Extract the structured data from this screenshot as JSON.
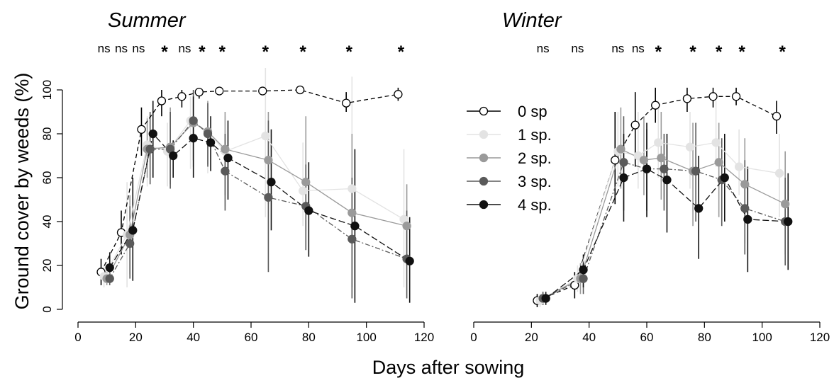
{
  "y_axis_title": "Ground cover by weeds (%)",
  "x_axis_title": "Days after sowing",
  "legend": [
    {
      "label": "0 sp",
      "color": "#000000",
      "fill": "#ffffff",
      "dash": "6,4"
    },
    {
      "label": "1 sp.",
      "color": "#e3e3e3",
      "fill": "#e3e3e3",
      "dash": ""
    },
    {
      "label": "2 sp.",
      "color": "#9a9a9a",
      "fill": "#9a9a9a",
      "dash": ""
    },
    {
      "label": "3 sp.",
      "color": "#5a5a5a",
      "fill": "#5a5a5a",
      "dash": "7,3,2,3"
    },
    {
      "label": "4 sp.",
      "color": "#111111",
      "fill": "#111111",
      "dash": "9,4"
    }
  ],
  "chart_data": [
    {
      "type": "line",
      "title": "Summer",
      "xlabel": "Days after sowing",
      "ylabel": "Ground cover by weeds (%)",
      "xlim": [
        0,
        120
      ],
      "ylim": [
        0,
        100
      ],
      "xticks": [
        "0",
        "20",
        "40",
        "60",
        "80",
        "100",
        "120"
      ],
      "yticks": [
        "0",
        "20",
        "40",
        "60",
        "80",
        "100"
      ],
      "significance": [
        {
          "x": 9,
          "label": "ns"
        },
        {
          "x": 15,
          "label": "ns"
        },
        {
          "x": 21,
          "label": "ns"
        },
        {
          "x": 30,
          "label": "*"
        },
        {
          "x": 37,
          "label": "ns"
        },
        {
          "x": 43,
          "label": "*"
        },
        {
          "x": 50,
          "label": "*"
        },
        {
          "x": 65,
          "label": "*"
        },
        {
          "x": 78,
          "label": "*"
        },
        {
          "x": 94,
          "label": "*"
        },
        {
          "x": 112,
          "label": "*"
        }
      ],
      "series": [
        {
          "name": "0 sp",
          "points": [
            {
              "x": 8,
              "y": 17,
              "lo": 11,
              "hi": 23
            },
            {
              "x": 15,
              "y": 35,
              "lo": 25,
              "hi": 45
            },
            {
              "x": 22,
              "y": 82,
              "lo": 70,
              "hi": 92
            },
            {
              "x": 29,
              "y": 95,
              "lo": 88,
              "hi": 100
            },
            {
              "x": 36,
              "y": 97,
              "lo": 92,
              "hi": 100
            },
            {
              "x": 42,
              "y": 99,
              "lo": 96,
              "hi": 100
            },
            {
              "x": 49,
              "y": 99.5,
              "lo": 98,
              "hi": 101
            },
            {
              "x": 64,
              "y": 99.5,
              "lo": 98,
              "hi": 101
            },
            {
              "x": 77,
              "y": 100,
              "lo": 99,
              "hi": 101
            },
            {
              "x": 93,
              "y": 94,
              "lo": 90,
              "hi": 99
            },
            {
              "x": 111,
              "y": 98,
              "lo": 95,
              "hi": 101
            }
          ]
        },
        {
          "name": "1 sp.",
          "points": [
            {
              "x": 9,
              "y": 15,
              "lo": 10,
              "hi": 20
            },
            {
              "x": 17,
              "y": 34,
              "lo": 10,
              "hi": 58
            },
            {
              "x": 24,
              "y": 75,
              "lo": 56,
              "hi": 88
            },
            {
              "x": 31,
              "y": 72,
              "lo": 56,
              "hi": 85
            },
            {
              "x": 39,
              "y": 86,
              "lo": 64,
              "hi": 97
            },
            {
              "x": 45,
              "y": 81,
              "lo": 62,
              "hi": 93
            },
            {
              "x": 51,
              "y": 72,
              "lo": 47,
              "hi": 88
            },
            {
              "x": 65,
              "y": 79,
              "lo": 42,
              "hi": 110
            },
            {
              "x": 78,
              "y": 54,
              "lo": 38,
              "hi": 76
            },
            {
              "x": 95,
              "y": 55,
              "lo": 25,
              "hi": 106
            },
            {
              "x": 113,
              "y": 41,
              "lo": 10,
              "hi": 73
            }
          ]
        },
        {
          "name": "2 sp.",
          "points": [
            {
              "x": 10,
              "y": 14,
              "lo": 11,
              "hi": 17
            },
            {
              "x": 18,
              "y": 34,
              "lo": 16,
              "hi": 52
            },
            {
              "x": 24,
              "y": 73,
              "lo": 60,
              "hi": 87
            },
            {
              "x": 32,
              "y": 74,
              "lo": 57,
              "hi": 92
            },
            {
              "x": 40,
              "y": 85,
              "lo": 65,
              "hi": 100
            },
            {
              "x": 45,
              "y": 81,
              "lo": 66,
              "hi": 95
            },
            {
              "x": 51,
              "y": 73,
              "lo": 52,
              "hi": 90
            },
            {
              "x": 66,
              "y": 68,
              "lo": 48,
              "hi": 90
            },
            {
              "x": 79,
              "y": 58,
              "lo": 36,
              "hi": 88
            },
            {
              "x": 95,
              "y": 44,
              "lo": 10,
              "hi": 80
            },
            {
              "x": 114,
              "y": 38,
              "lo": 20,
              "hi": 57
            }
          ]
        },
        {
          "name": "3 sp.",
          "points": [
            {
              "x": 11,
              "y": 14,
              "lo": 11,
              "hi": 17
            },
            {
              "x": 18,
              "y": 30,
              "lo": 14,
              "hi": 47
            },
            {
              "x": 25,
              "y": 73,
              "lo": 57,
              "hi": 90
            },
            {
              "x": 32,
              "y": 73,
              "lo": 55,
              "hi": 90
            },
            {
              "x": 40,
              "y": 86,
              "lo": 68,
              "hi": 100
            },
            {
              "x": 45,
              "y": 80,
              "lo": 65,
              "hi": 94
            },
            {
              "x": 51,
              "y": 63,
              "lo": 45,
              "hi": 80
            },
            {
              "x": 66,
              "y": 51,
              "lo": 17,
              "hi": 86
            },
            {
              "x": 79,
              "y": 47,
              "lo": 27,
              "hi": 66
            },
            {
              "x": 95,
              "y": 32,
              "lo": 5,
              "hi": 60
            },
            {
              "x": 114,
              "y": 23,
              "lo": 5,
              "hi": 45
            }
          ]
        },
        {
          "name": "4 sp.",
          "points": [
            {
              "x": 11,
              "y": 19,
              "lo": 13,
              "hi": 26
            },
            {
              "x": 19,
              "y": 36,
              "lo": 13,
              "hi": 60
            },
            {
              "x": 26,
              "y": 80,
              "lo": 60,
              "hi": 95
            },
            {
              "x": 33,
              "y": 70,
              "lo": 60,
              "hi": 77
            },
            {
              "x": 40,
              "y": 78,
              "lo": 60,
              "hi": 97
            },
            {
              "x": 46,
              "y": 76,
              "lo": 63,
              "hi": 88
            },
            {
              "x": 52,
              "y": 69,
              "lo": 50,
              "hi": 86
            },
            {
              "x": 67,
              "y": 58,
              "lo": 36,
              "hi": 82
            },
            {
              "x": 80,
              "y": 45,
              "lo": 24,
              "hi": 67
            },
            {
              "x": 96,
              "y": 38,
              "lo": 3,
              "hi": 73
            },
            {
              "x": 115,
              "y": 22,
              "lo": 3,
              "hi": 42
            }
          ]
        }
      ]
    },
    {
      "type": "line",
      "title": "Winter",
      "xlabel": "Days after sowing",
      "ylabel": "",
      "xlim": [
        0,
        120
      ],
      "ylim": [
        0,
        100
      ],
      "xticks": [
        "0",
        "20",
        "40",
        "60",
        "80",
        "100",
        "120"
      ],
      "yticks": [],
      "significance": [
        {
          "x": 24,
          "label": "ns"
        },
        {
          "x": 36,
          "label": "ns"
        },
        {
          "x": 50,
          "label": "ns"
        },
        {
          "x": 57,
          "label": "ns"
        },
        {
          "x": 64,
          "label": "*"
        },
        {
          "x": 76,
          "label": "*"
        },
        {
          "x": 85,
          "label": "*"
        },
        {
          "x": 93,
          "label": "*"
        },
        {
          "x": 107,
          "label": "*"
        }
      ],
      "series": [
        {
          "name": "0 sp",
          "points": [
            {
              "x": 22,
              "y": 4,
              "lo": 1,
              "hi": 7
            },
            {
              "x": 35,
              "y": 11,
              "lo": 5,
              "hi": 17
            },
            {
              "x": 49,
              "y": 68,
              "lo": 48,
              "hi": 90
            },
            {
              "x": 56,
              "y": 84,
              "lo": 65,
              "hi": 99
            },
            {
              "x": 63,
              "y": 93,
              "lo": 85,
              "hi": 101
            },
            {
              "x": 74,
              "y": 96,
              "lo": 90,
              "hi": 101
            },
            {
              "x": 83,
              "y": 97,
              "lo": 92,
              "hi": 101
            },
            {
              "x": 91,
              "y": 97,
              "lo": 93,
              "hi": 101
            },
            {
              "x": 105,
              "y": 88,
              "lo": 80,
              "hi": 95
            }
          ]
        },
        {
          "name": "1 sp.",
          "points": [
            {
              "x": 23,
              "y": 4,
              "lo": 1,
              "hi": 7
            },
            {
              "x": 36,
              "y": 14,
              "lo": 8,
              "hi": 20
            },
            {
              "x": 50,
              "y": 72,
              "lo": 56,
              "hi": 90
            },
            {
              "x": 57,
              "y": 70,
              "lo": 55,
              "hi": 90
            },
            {
              "x": 64,
              "y": 76,
              "lo": 60,
              "hi": 95
            },
            {
              "x": 75,
              "y": 74,
              "lo": 55,
              "hi": 90
            },
            {
              "x": 84,
              "y": 76,
              "lo": 65,
              "hi": 95
            },
            {
              "x": 92,
              "y": 65,
              "lo": 52,
              "hi": 82
            },
            {
              "x": 106,
              "y": 62,
              "lo": 42,
              "hi": 80
            }
          ]
        },
        {
          "name": "2 sp.",
          "points": [
            {
              "x": 24,
              "y": 5,
              "lo": 2,
              "hi": 8
            },
            {
              "x": 37,
              "y": 14,
              "lo": 7,
              "hi": 21
            },
            {
              "x": 51,
              "y": 73,
              "lo": 55,
              "hi": 92
            },
            {
              "x": 59,
              "y": 68,
              "lo": 52,
              "hi": 88
            },
            {
              "x": 65,
              "y": 69,
              "lo": 50,
              "hi": 90
            },
            {
              "x": 76,
              "y": 63,
              "lo": 38,
              "hi": 85
            },
            {
              "x": 85,
              "y": 67,
              "lo": 42,
              "hi": 85
            },
            {
              "x": 94,
              "y": 57,
              "lo": 30,
              "hi": 78
            },
            {
              "x": 108,
              "y": 48,
              "lo": 25,
              "hi": 72
            }
          ]
        },
        {
          "name": "3 sp.",
          "points": [
            {
              "x": 24,
              "y": 5,
              "lo": 2,
              "hi": 8
            },
            {
              "x": 38,
              "y": 14,
              "lo": 7,
              "hi": 22
            },
            {
              "x": 52,
              "y": 67,
              "lo": 45,
              "hi": 88
            },
            {
              "x": 60,
              "y": 64,
              "lo": 45,
              "hi": 82
            },
            {
              "x": 66,
              "y": 64,
              "lo": 45,
              "hi": 80
            },
            {
              "x": 77,
              "y": 63,
              "lo": 40,
              "hi": 85
            },
            {
              "x": 86,
              "y": 59,
              "lo": 38,
              "hi": 78
            },
            {
              "x": 94,
              "y": 46,
              "lo": 25,
              "hi": 68
            },
            {
              "x": 108,
              "y": 40,
              "lo": 20,
              "hi": 60
            }
          ]
        },
        {
          "name": "4 sp.",
          "points": [
            {
              "x": 25,
              "y": 5,
              "lo": 2,
              "hi": 8
            },
            {
              "x": 38,
              "y": 18,
              "lo": 10,
              "hi": 25
            },
            {
              "x": 52,
              "y": 60,
              "lo": 40,
              "hi": 80
            },
            {
              "x": 60,
              "y": 64,
              "lo": 42,
              "hi": 85
            },
            {
              "x": 67,
              "y": 59,
              "lo": 35,
              "hi": 80
            },
            {
              "x": 78,
              "y": 46,
              "lo": 23,
              "hi": 70
            },
            {
              "x": 87,
              "y": 60,
              "lo": 40,
              "hi": 80
            },
            {
              "x": 95,
              "y": 41,
              "lo": 17,
              "hi": 65
            },
            {
              "x": 109,
              "y": 40,
              "lo": 18,
              "hi": 62
            }
          ]
        }
      ]
    }
  ]
}
